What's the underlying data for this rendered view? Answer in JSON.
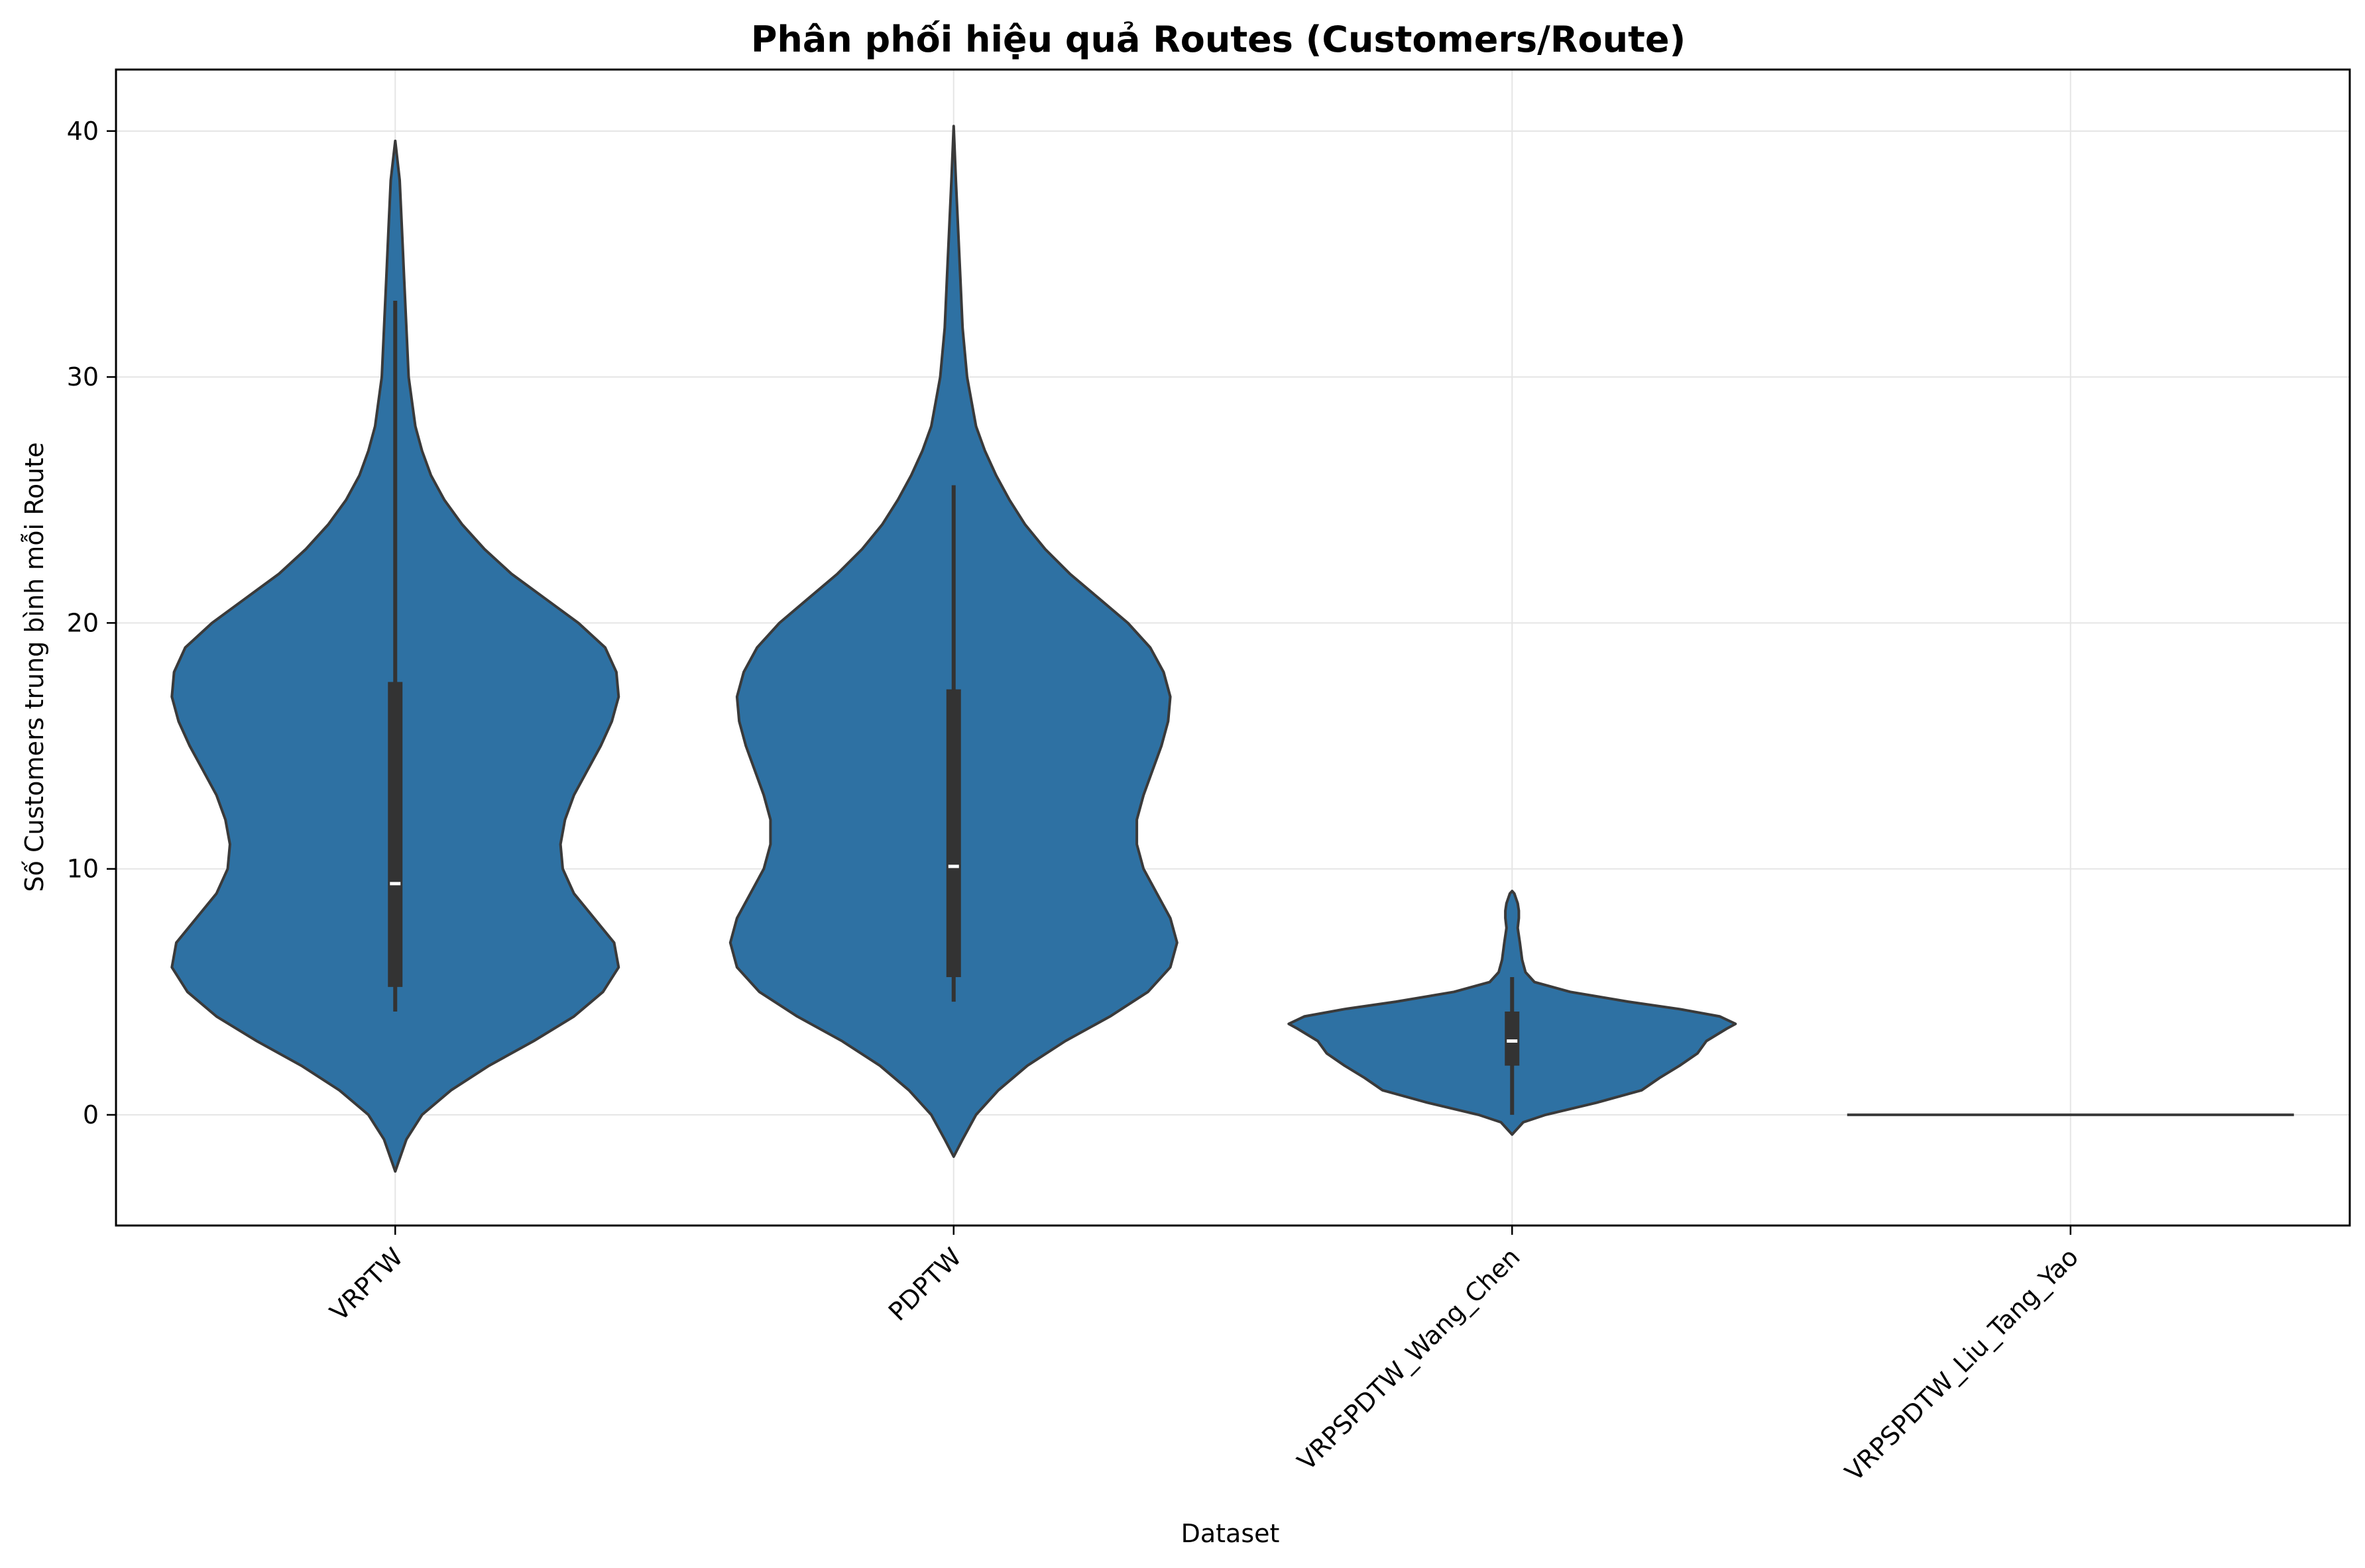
{
  "chart_data": {
    "type": "violin",
    "title": "Phân phối hiệu quả Routes (Customers/Route)",
    "xlabel": "Dataset",
    "ylabel": "Số Customers trung bình mỗi Route",
    "categories": [
      "VRPTW",
      "PDPTW",
      "VRPSPDTW_Wang_Chen",
      "VRPSPDTW_Liu_Tang_Yao"
    ],
    "ylim": [
      -4.5,
      42.5
    ],
    "yticks": [
      0,
      10,
      20,
      30,
      40
    ],
    "grid": true,
    "colors": {
      "fill": "#2e71a3",
      "edge": "#3a3a3a",
      "box": "#333333",
      "median": "#ffffff",
      "grid": "#e5e5e5"
    },
    "series": [
      {
        "category": "VRPTW",
        "density": [
          [
            -2.3,
            0.0
          ],
          [
            -1.0,
            0.05
          ],
          [
            0.0,
            0.12
          ],
          [
            1.0,
            0.25
          ],
          [
            2.0,
            0.42
          ],
          [
            3.0,
            0.62
          ],
          [
            4.0,
            0.8
          ],
          [
            5.0,
            0.93
          ],
          [
            6.0,
            1.0
          ],
          [
            7.0,
            0.98
          ],
          [
            8.0,
            0.89
          ],
          [
            9.0,
            0.8
          ],
          [
            10.0,
            0.75
          ],
          [
            11.0,
            0.74
          ],
          [
            12.0,
            0.76
          ],
          [
            13.0,
            0.8
          ],
          [
            14.0,
            0.86
          ],
          [
            15.0,
            0.92
          ],
          [
            16.0,
            0.97
          ],
          [
            17.0,
            1.0
          ],
          [
            18.0,
            0.99
          ],
          [
            19.0,
            0.94
          ],
          [
            20.0,
            0.82
          ],
          [
            21.0,
            0.67
          ],
          [
            22.0,
            0.52
          ],
          [
            23.0,
            0.4
          ],
          [
            24.0,
            0.3
          ],
          [
            25.0,
            0.22
          ],
          [
            26.0,
            0.16
          ],
          [
            27.0,
            0.12
          ],
          [
            28.0,
            0.09
          ],
          [
            30.0,
            0.06
          ],
          [
            32.0,
            0.05
          ],
          [
            34.0,
            0.04
          ],
          [
            36.0,
            0.03
          ],
          [
            38.0,
            0.02
          ],
          [
            39.6,
            0.0
          ]
        ],
        "whisker": [
          4.2,
          33.1
        ],
        "box": [
          5.2,
          17.6
        ],
        "median": 9.4
      },
      {
        "category": "PDPTW",
        "density": [
          [
            -1.7,
            0.0
          ],
          [
            -1.0,
            0.04
          ],
          [
            0.0,
            0.1
          ],
          [
            1.0,
            0.2
          ],
          [
            2.0,
            0.33
          ],
          [
            3.0,
            0.5
          ],
          [
            4.0,
            0.7
          ],
          [
            5.0,
            0.87
          ],
          [
            6.0,
            0.97
          ],
          [
            7.0,
            1.0
          ],
          [
            8.0,
            0.97
          ],
          [
            9.0,
            0.91
          ],
          [
            10.0,
            0.85
          ],
          [
            11.0,
            0.82
          ],
          [
            12.0,
            0.82
          ],
          [
            13.0,
            0.85
          ],
          [
            14.0,
            0.89
          ],
          [
            15.0,
            0.93
          ],
          [
            16.0,
            0.96
          ],
          [
            17.0,
            0.97
          ],
          [
            18.0,
            0.94
          ],
          [
            19.0,
            0.88
          ],
          [
            20.0,
            0.78
          ],
          [
            21.0,
            0.65
          ],
          [
            22.0,
            0.52
          ],
          [
            23.0,
            0.41
          ],
          [
            24.0,
            0.32
          ],
          [
            25.0,
            0.25
          ],
          [
            26.0,
            0.19
          ],
          [
            27.0,
            0.14
          ],
          [
            28.0,
            0.1
          ],
          [
            30.0,
            0.06
          ],
          [
            32.0,
            0.04
          ],
          [
            34.0,
            0.03
          ],
          [
            36.0,
            0.02
          ],
          [
            38.0,
            0.01
          ],
          [
            40.2,
            0.0
          ]
        ],
        "whisker": [
          4.6,
          25.6
        ],
        "box": [
          5.6,
          17.3
        ],
        "median": 10.1
      },
      {
        "category": "VRPSPDTW_Wang_Chen",
        "density": [
          [
            -0.8,
            0.0
          ],
          [
            -0.3,
            0.05
          ],
          [
            0.0,
            0.15
          ],
          [
            0.5,
            0.38
          ],
          [
            1.0,
            0.58
          ],
          [
            1.5,
            0.66
          ],
          [
            2.0,
            0.75
          ],
          [
            2.5,
            0.83
          ],
          [
            3.0,
            0.87
          ],
          [
            3.5,
            0.96
          ],
          [
            3.7,
            1.0
          ],
          [
            4.0,
            0.93
          ],
          [
            4.3,
            0.75
          ],
          [
            4.6,
            0.52
          ],
          [
            5.0,
            0.26
          ],
          [
            5.4,
            0.1
          ],
          [
            5.8,
            0.06
          ],
          [
            6.3,
            0.045
          ],
          [
            7.0,
            0.035
          ],
          [
            7.6,
            0.025
          ],
          [
            8.0,
            0.03
          ],
          [
            8.3,
            0.03
          ],
          [
            8.6,
            0.025
          ],
          [
            9.0,
            0.01
          ],
          [
            9.1,
            0.0
          ]
        ],
        "whisker": [
          0.0,
          5.6
        ],
        "box": [
          2.0,
          4.2
        ],
        "median": 3.0
      },
      {
        "category": "VRPSPDTW_Liu_Tang_Yao",
        "density": [
          [
            0.0,
            1.0
          ]
        ],
        "whisker": [
          0.0,
          0.0
        ],
        "box": [
          0.0,
          0.0
        ],
        "median": 0.0
      }
    ]
  }
}
